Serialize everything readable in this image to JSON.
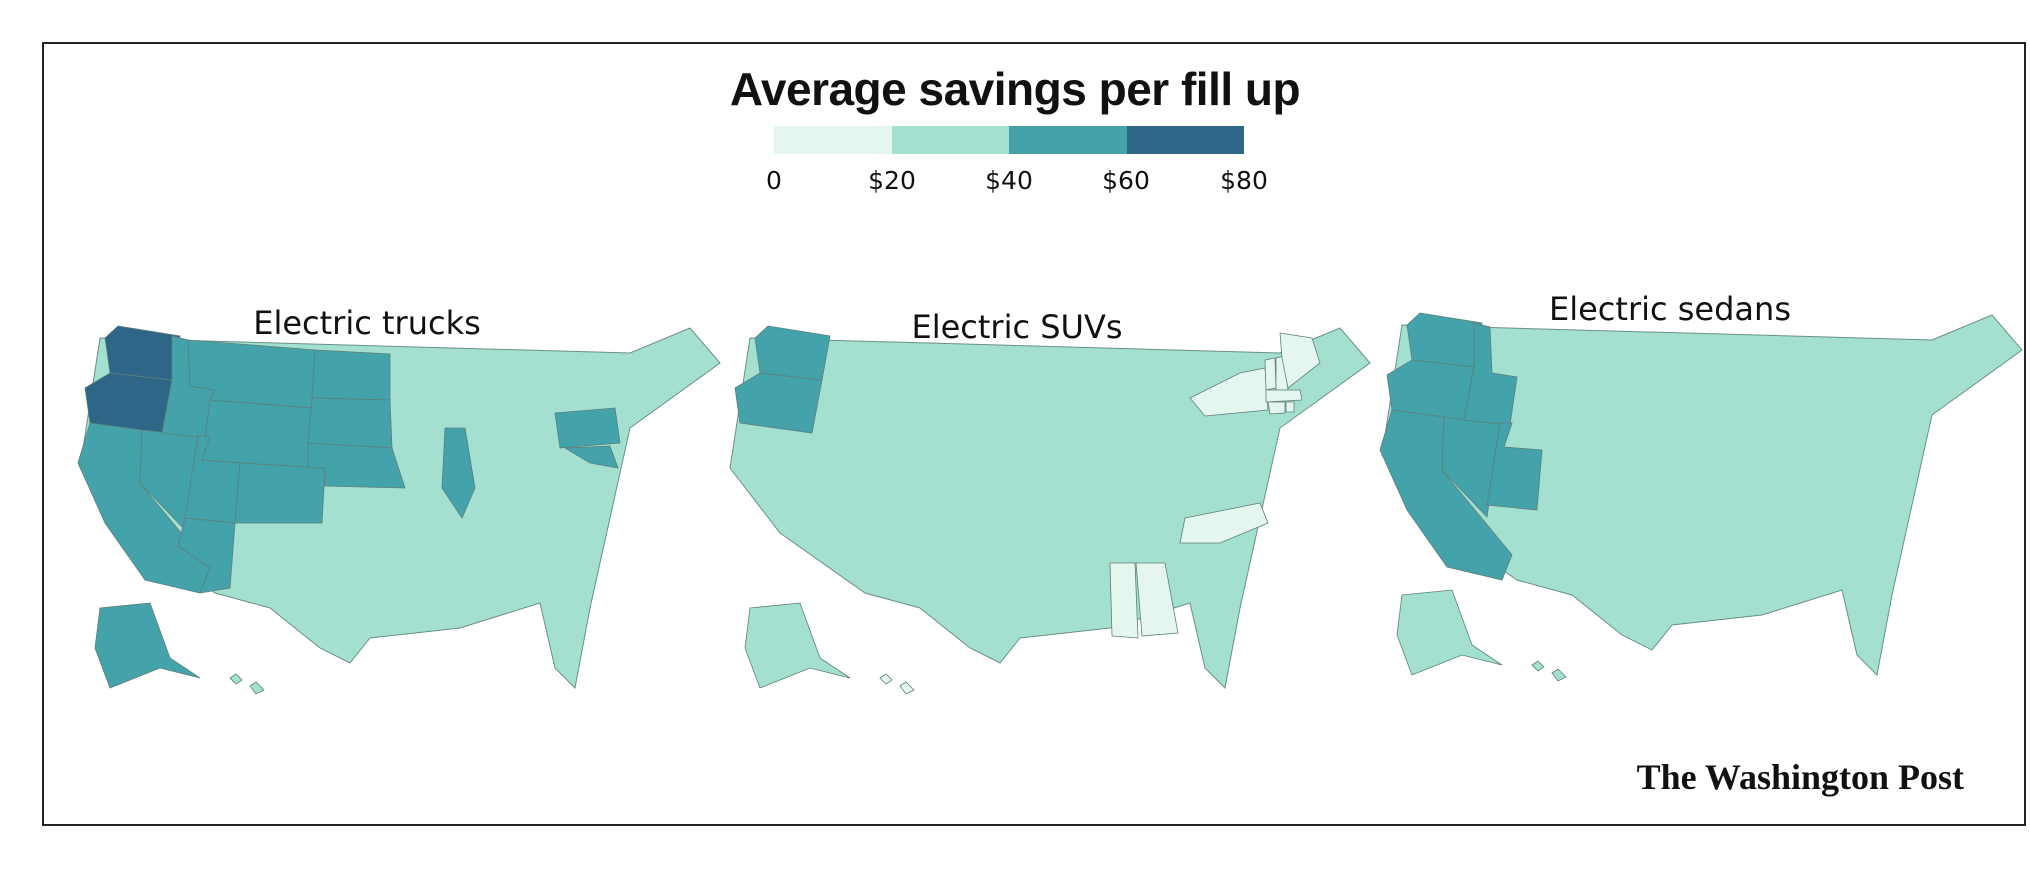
{
  "title": "Average savings per fill up",
  "legend": {
    "bins": [
      {
        "label": "0",
        "color": "#e5f6ee"
      },
      {
        "label": "$20",
        "color": "#a3e0d0"
      },
      {
        "label": "$40",
        "color": "#44a2ab"
      },
      {
        "label": "$60",
        "color": "#2e6688"
      },
      {
        "label": "$80",
        "color": null
      }
    ]
  },
  "maps": [
    {
      "title": "Electric trucks",
      "regions": {
        "WA": 3,
        "OR": 3,
        "CA": 2,
        "NV": 2,
        "ID": 2,
        "MT": 2,
        "WY": 2,
        "UT": 2,
        "AZ": 2,
        "CO": 2,
        "ND": 2,
        "SD": 2,
        "NE": 2,
        "IL": 2,
        "PA": 2,
        "MD": 2,
        "AK": 2,
        "base": 1,
        "HI": 1
      }
    },
    {
      "title": "Electric SUVs",
      "regions": {
        "WA": 2,
        "OR": 2,
        "NY": 0,
        "VT": 0,
        "NH": 0,
        "ME": 0,
        "MA": 0,
        "CT": 0,
        "RI": 0,
        "NC": 0,
        "MS": 0,
        "AL": 0,
        "HI": 0,
        "base": 1,
        "AK": 1
      }
    },
    {
      "title": "Electric sedans",
      "regions": {
        "WA": 2,
        "OR": 2,
        "CA": 2,
        "NV": 2,
        "ID": 2,
        "UT": 2,
        "base": 1,
        "AK": 1,
        "HI": 1
      }
    }
  ],
  "credit": "The Washington Post"
}
